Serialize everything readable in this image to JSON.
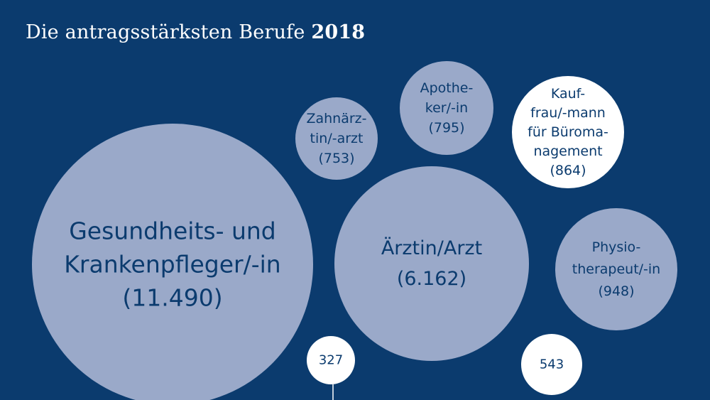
{
  "chart_data": {
    "type": "bubble",
    "title": "Die antragsstärksten Berufe",
    "title_year": "2018",
    "colors": {
      "background": "#0b3b6e",
      "bubble_blue": "#9aa9c9",
      "bubble_white": "#ffffff",
      "text_dark": "#0b3b6e",
      "text_white": "#ffffff"
    },
    "bubbles": [
      {
        "id": "gesundheits",
        "lines": [
          "Gesundheits- und",
          "Krankenpfleger/-in",
          "(11.490)"
        ],
        "value": 11490,
        "style": "blue"
      },
      {
        "id": "aerztin",
        "lines": [
          "Ärztin/Arzt",
          "(6.162)"
        ],
        "value": 6162,
        "style": "blue"
      },
      {
        "id": "zahnaerztin",
        "lines": [
          "Zahnärz-",
          "tin/-arzt",
          "(753)"
        ],
        "value": 753,
        "style": "blue"
      },
      {
        "id": "apotheker",
        "lines": [
          "Apothe-",
          "ker/-in",
          "(795)"
        ],
        "value": 795,
        "style": "blue"
      },
      {
        "id": "kauffrau",
        "lines": [
          "Kauf-",
          "frau/-mann",
          "für Büroma-",
          "nagement",
          "(864)"
        ],
        "value": 864,
        "style": "white"
      },
      {
        "id": "physio",
        "lines": [
          "Physio-",
          "therapeut/-in",
          "(948)"
        ],
        "value": 948,
        "style": "blue"
      },
      {
        "id": "small327",
        "lines": [
          "327"
        ],
        "value": 327,
        "style": "white"
      },
      {
        "id": "small543",
        "lines": [
          "543"
        ],
        "value": 543,
        "style": "white"
      }
    ]
  }
}
